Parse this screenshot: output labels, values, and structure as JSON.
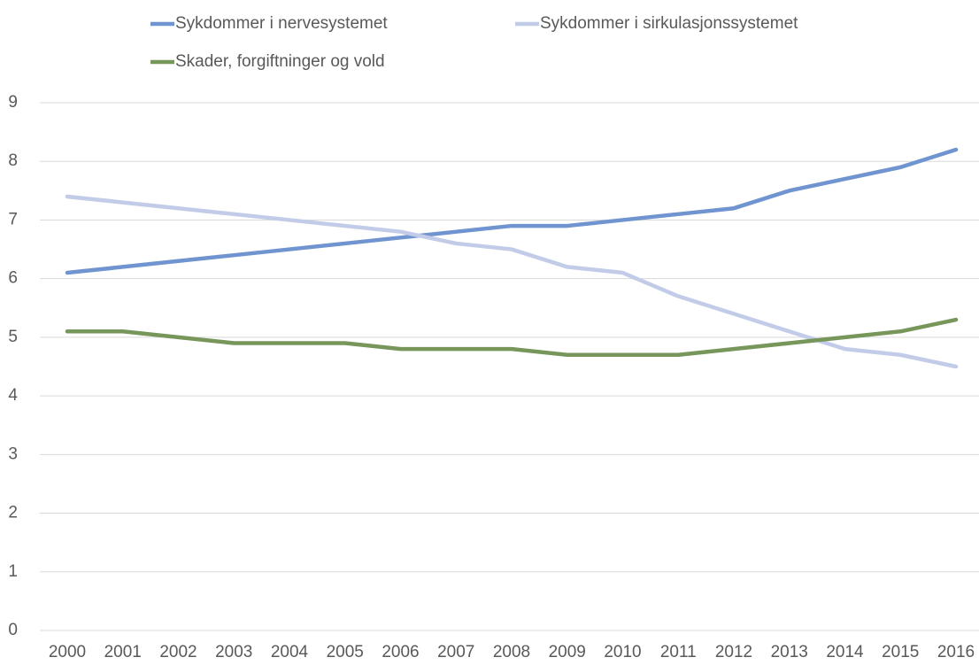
{
  "chart_data": {
    "type": "line",
    "categories": [
      "2000",
      "2001",
      "2002",
      "2003",
      "2004",
      "2005",
      "2006",
      "2007",
      "2008",
      "2009",
      "2010",
      "2011",
      "2012",
      "2013",
      "2014",
      "2015",
      "2016"
    ],
    "series": [
      {
        "name": "Sykdommer i nervesystemet",
        "color": "#6f94cf",
        "values": [
          6.1,
          6.2,
          6.3,
          6.4,
          6.5,
          6.6,
          6.7,
          6.8,
          6.9,
          6.9,
          7.0,
          7.1,
          7.2,
          7.5,
          7.7,
          7.9,
          8.2
        ]
      },
      {
        "name": "Sykdommer i sirkulasjonssystemet",
        "color": "#c2cbe8",
        "values": [
          7.4,
          7.3,
          7.2,
          7.1,
          7.0,
          6.9,
          6.8,
          6.6,
          6.5,
          6.2,
          6.1,
          5.7,
          5.4,
          5.1,
          4.8,
          4.7,
          4.5
        ]
      },
      {
        "name": "Skader, forgiftninger og vold",
        "color": "#76965a",
        "values": [
          5.1,
          5.1,
          5.0,
          4.9,
          4.9,
          4.9,
          4.8,
          4.8,
          4.8,
          4.7,
          4.7,
          4.7,
          4.8,
          4.9,
          5.0,
          5.1,
          5.3
        ]
      }
    ],
    "ylim": [
      0,
      9
    ],
    "yticks": [
      0,
      1,
      2,
      3,
      4,
      5,
      6,
      7,
      8,
      9
    ],
    "grid": true,
    "legend": "top"
  }
}
